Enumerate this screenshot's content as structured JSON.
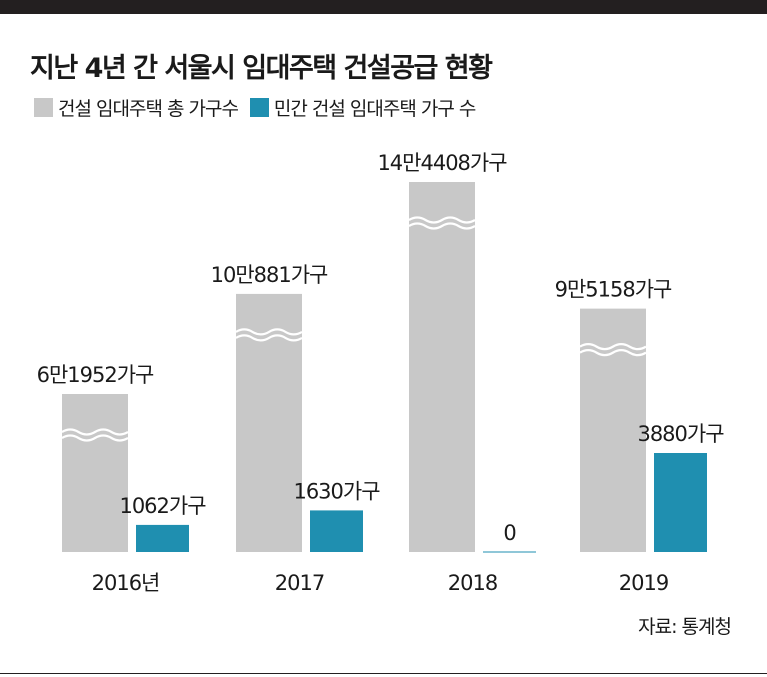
{
  "title": "지난 4년 간 서울시 임대주택 건설공급 현황",
  "source": "자료: 통계청",
  "colors": {
    "total": "#c8c8c8",
    "private": "#1f8fb0"
  },
  "chart_data": {
    "type": "bar",
    "title": "지난 4년 간 서울시 임대주택 건설공급 현황",
    "categories": [
      "2016년",
      "2017",
      "2018",
      "2019"
    ],
    "series": [
      {
        "name": "건설 임대주택 총 가구수",
        "values": [
          61952,
          100881,
          144408,
          95158
        ],
        "labels": [
          "6만1952가구",
          "10만881가구",
          "14만4408가구",
          "9만5158가구"
        ],
        "axis_break": true
      },
      {
        "name": "민간 건설 임대주택 가구 수",
        "values": [
          1062,
          1630,
          0,
          3880
        ],
        "labels": [
          "1062가구",
          "1630가구",
          "0",
          "3880가구"
        ]
      }
    ],
    "legend": "top-left",
    "grid": false
  }
}
